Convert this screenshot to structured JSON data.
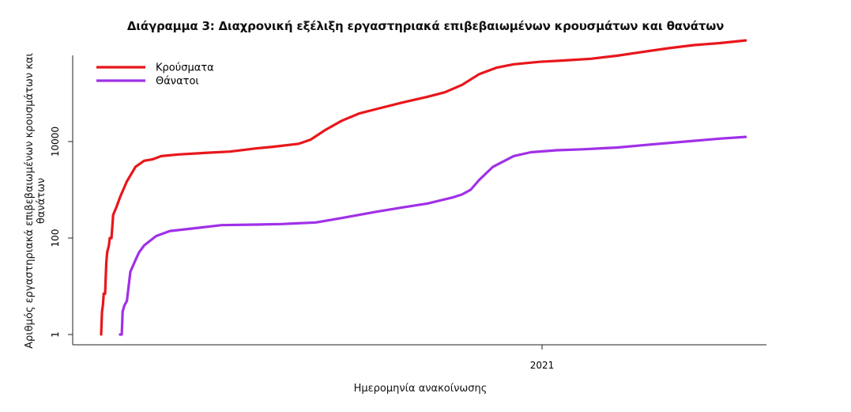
{
  "chart_data": {
    "type": "line",
    "title": "Διάγραμμα 3: Διαχρονική εξέλιξη εργαστηριακά επιβεβαιωμένων κρουσμάτων και θανάτων",
    "xlabel": "Ημερομηνία ανακοίνωσης",
    "ylabel": "Αριθμός εργαστηριακά επιβεβαιωμένων κρουσμάτων και θανάτων",
    "y_scale": "log",
    "y_ticks": [
      "1",
      "100",
      "10000"
    ],
    "x_ticks": [
      "2021"
    ],
    "legend_position": "top-left",
    "grid": false,
    "series": [
      {
        "name": "Κρούσματα",
        "color": "#e8161b",
        "points": [
          [
            0.0,
            1
          ],
          [
            0.5,
            3
          ],
          [
            1.0,
            4
          ],
          [
            1.5,
            7
          ],
          [
            2.3,
            7
          ],
          [
            3.0,
            30
          ],
          [
            3.5,
            50
          ],
          [
            4.5,
            70
          ],
          [
            5.0,
            100
          ],
          [
            6.0,
            100
          ],
          [
            7.0,
            300
          ],
          [
            9.0,
            450
          ],
          [
            11.0,
            700
          ],
          [
            15.0,
            1500
          ],
          [
            20.0,
            3000
          ],
          [
            25.0,
            4000
          ],
          [
            30.0,
            4300
          ],
          [
            35.0,
            5000
          ],
          [
            45.0,
            5400
          ],
          [
            60.0,
            5800
          ],
          [
            75.0,
            6200
          ],
          [
            90.0,
            7200
          ],
          [
            100.0,
            7800
          ],
          [
            115.0,
            9000
          ],
          [
            122.0,
            11000
          ],
          [
            130.0,
            17000
          ],
          [
            140.0,
            27000
          ],
          [
            150.0,
            38000
          ],
          [
            160.0,
            47000
          ],
          [
            175.0,
            64000
          ],
          [
            190.0,
            85000
          ],
          [
            200.0,
            105000
          ],
          [
            210.0,
            150000
          ],
          [
            220.0,
            250000
          ],
          [
            230.0,
            340000
          ],
          [
            240.0,
            400000
          ],
          [
            255.0,
            450000
          ],
          [
            270.0,
            480000
          ],
          [
            285.0,
            520000
          ],
          [
            300.0,
            600000
          ],
          [
            315.0,
            720000
          ],
          [
            330.0,
            860000
          ],
          [
            345.0,
            1000000
          ],
          [
            360.0,
            1100000
          ],
          [
            375.0,
            1250000
          ]
        ]
      },
      {
        "name": "Θάνατοι",
        "color": "#a030e8",
        "points": [
          [
            11.0,
            1
          ],
          [
            12.0,
            1
          ],
          [
            12.5,
            3
          ],
          [
            13.5,
            4
          ],
          [
            15.0,
            5
          ],
          [
            16.0,
            10
          ],
          [
            17.0,
            20
          ],
          [
            20.0,
            35
          ],
          [
            22.0,
            50
          ],
          [
            25.0,
            70
          ],
          [
            28.0,
            85
          ],
          [
            32.0,
            110
          ],
          [
            40.0,
            140
          ],
          [
            55.0,
            160
          ],
          [
            70.0,
            185
          ],
          [
            90.0,
            190
          ],
          [
            105.0,
            195
          ],
          [
            125.0,
            210
          ],
          [
            140.0,
            260
          ],
          [
            160.0,
            350
          ],
          [
            175.0,
            430
          ],
          [
            190.0,
            520
          ],
          [
            205.0,
            700
          ],
          [
            210.0,
            800
          ],
          [
            215.0,
            1000
          ],
          [
            220.0,
            1600
          ],
          [
            228.0,
            3000
          ],
          [
            240.0,
            5000
          ],
          [
            250.0,
            6000
          ],
          [
            265.0,
            6600
          ],
          [
            280.0,
            6900
          ],
          [
            300.0,
            7500
          ],
          [
            320.0,
            8700
          ],
          [
            340.0,
            10000
          ],
          [
            360.0,
            11500
          ],
          [
            375.0,
            12500
          ]
        ]
      }
    ]
  }
}
